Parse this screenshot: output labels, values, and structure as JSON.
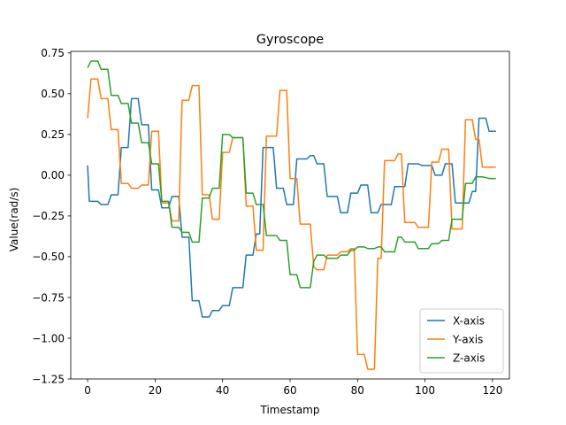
{
  "chart_data": {
    "type": "line",
    "title": "Gyroscope",
    "xlabel": "Timestamp",
    "ylabel": "Value(rad/s)",
    "xlim": [
      -5,
      125
    ],
    "ylim": [
      -1.25,
      0.76
    ],
    "x_ticks": [
      0,
      20,
      40,
      60,
      80,
      100,
      120
    ],
    "x_tick_labels": [
      "0",
      "20",
      "40",
      "60",
      "80",
      "100",
      "120"
    ],
    "y_ticks": [
      -1.25,
      -1.0,
      -0.75,
      -0.5,
      -0.25,
      0.0,
      0.25,
      0.5,
      0.75
    ],
    "y_tick_labels": [
      "−1.25",
      "−1.00",
      "−0.75",
      "−0.50",
      "−0.25",
      "0.00",
      "0.25",
      "0.50",
      "0.75"
    ],
    "grid": false,
    "legend": {
      "position": "bottom-right",
      "entries": [
        "X-axis",
        "Y-axis",
        "Z-axis"
      ]
    },
    "series": [
      {
        "name": "X-axis",
        "color": "#1f77b4",
        "points": [
          [
            0,
            0.06
          ],
          [
            0.5,
            -0.16
          ],
          [
            2,
            -0.16
          ],
          [
            3,
            -0.16
          ],
          [
            4,
            -0.18
          ],
          [
            6,
            -0.18
          ],
          [
            7,
            -0.12
          ],
          [
            9,
            -0.12
          ],
          [
            10,
            0.17
          ],
          [
            12,
            0.17
          ],
          [
            13,
            0.47
          ],
          [
            15,
            0.47
          ],
          [
            16,
            0.31
          ],
          [
            18,
            0.31
          ],
          [
            19,
            -0.09
          ],
          [
            21,
            -0.09
          ],
          [
            22,
            -0.2
          ],
          [
            24,
            -0.2
          ],
          [
            25,
            -0.13
          ],
          [
            27,
            -0.13
          ],
          [
            28,
            -0.38
          ],
          [
            30,
            -0.38
          ],
          [
            31,
            -0.77
          ],
          [
            33,
            -0.77
          ],
          [
            34,
            -0.87
          ],
          [
            36,
            -0.87
          ],
          [
            37,
            -0.83
          ],
          [
            39,
            -0.83
          ],
          [
            40,
            -0.8
          ],
          [
            42,
            -0.8
          ],
          [
            43,
            -0.69
          ],
          [
            46,
            -0.69
          ],
          [
            47,
            -0.49
          ],
          [
            49,
            -0.49
          ],
          [
            50,
            -0.36
          ],
          [
            51,
            -0.36
          ],
          [
            52,
            0.17
          ],
          [
            55,
            0.17
          ],
          [
            56,
            -0.08
          ],
          [
            58,
            -0.08
          ],
          [
            59,
            -0.18
          ],
          [
            61,
            -0.18
          ],
          [
            62,
            0.1
          ],
          [
            65,
            0.1
          ],
          [
            66,
            0.12
          ],
          [
            67,
            0.12
          ],
          [
            68,
            0.07
          ],
          [
            70,
            0.07
          ],
          [
            71,
            -0.13
          ],
          [
            74,
            -0.13
          ],
          [
            75,
            -0.23
          ],
          [
            77,
            -0.23
          ],
          [
            78,
            -0.11
          ],
          [
            80,
            -0.11
          ],
          [
            81,
            -0.06
          ],
          [
            83,
            -0.06
          ],
          [
            84,
            -0.23
          ],
          [
            86,
            -0.23
          ],
          [
            87,
            -0.18
          ],
          [
            90,
            -0.18
          ],
          [
            91,
            -0.07
          ],
          [
            94,
            -0.07
          ],
          [
            95,
            0.07
          ],
          [
            98,
            0.07
          ],
          [
            99,
            0.06
          ],
          [
            102,
            0.06
          ],
          [
            103,
            0.0
          ],
          [
            105,
            0.0
          ],
          [
            106,
            0.07
          ],
          [
            108,
            0.07
          ],
          [
            109,
            -0.17
          ],
          [
            113,
            -0.17
          ],
          [
            114,
            -0.1
          ],
          [
            115,
            -0.1
          ],
          [
            116,
            0.35
          ],
          [
            118,
            0.35
          ],
          [
            119,
            0.27
          ],
          [
            121,
            0.27
          ]
        ]
      },
      {
        "name": "Y-axis",
        "color": "#ff7f0e",
        "points": [
          [
            0,
            0.35
          ],
          [
            1,
            0.59
          ],
          [
            3,
            0.59
          ],
          [
            4,
            0.47
          ],
          [
            6,
            0.47
          ],
          [
            7,
            0.28
          ],
          [
            9,
            0.28
          ],
          [
            10,
            -0.05
          ],
          [
            12,
            -0.05
          ],
          [
            13,
            -0.08
          ],
          [
            15,
            -0.08
          ],
          [
            16,
            -0.06
          ],
          [
            18,
            -0.06
          ],
          [
            19,
            0.27
          ],
          [
            21,
            0.27
          ],
          [
            22,
            -0.17
          ],
          [
            24,
            -0.17
          ],
          [
            25,
            -0.28
          ],
          [
            27,
            -0.28
          ],
          [
            28,
            0.46
          ],
          [
            30,
            0.46
          ],
          [
            31,
            0.55
          ],
          [
            33,
            0.55
          ],
          [
            34,
            -0.12
          ],
          [
            36,
            -0.12
          ],
          [
            37,
            -0.27
          ],
          [
            39,
            -0.27
          ],
          [
            40,
            0.14
          ],
          [
            42,
            0.14
          ],
          [
            43,
            0.23
          ],
          [
            46,
            0.23
          ],
          [
            47,
            -0.19
          ],
          [
            49,
            -0.19
          ],
          [
            50,
            -0.46
          ],
          [
            52,
            -0.46
          ],
          [
            53,
            0.24
          ],
          [
            56,
            0.24
          ],
          [
            57,
            0.52
          ],
          [
            59,
            0.52
          ],
          [
            60,
            -0.02
          ],
          [
            62,
            -0.02
          ],
          [
            63,
            -0.3
          ],
          [
            66,
            -0.3
          ],
          [
            67,
            -0.56
          ],
          [
            68,
            -0.58
          ],
          [
            70,
            -0.58
          ],
          [
            71,
            -0.49
          ],
          [
            74,
            -0.49
          ],
          [
            75,
            -0.47
          ],
          [
            77,
            -0.47
          ],
          [
            78,
            -0.45
          ],
          [
            79,
            -0.45
          ],
          [
            80,
            -1.1
          ],
          [
            82,
            -1.1
          ],
          [
            83,
            -1.19
          ],
          [
            85,
            -1.19
          ],
          [
            86,
            -0.51
          ],
          [
            87,
            -0.51
          ],
          [
            88,
            0.09
          ],
          [
            91,
            0.09
          ],
          [
            92,
            0.13
          ],
          [
            93,
            0.13
          ],
          [
            94,
            -0.29
          ],
          [
            97,
            -0.29
          ],
          [
            98,
            -0.32
          ],
          [
            101,
            -0.32
          ],
          [
            102,
            0.08
          ],
          [
            104,
            0.08
          ],
          [
            105,
            0.16
          ],
          [
            107,
            0.16
          ],
          [
            108,
            -0.33
          ],
          [
            111,
            -0.33
          ],
          [
            112,
            0.34
          ],
          [
            114,
            0.34
          ],
          [
            115,
            0.22
          ],
          [
            116,
            0.22
          ],
          [
            117,
            0.05
          ],
          [
            119,
            0.05
          ],
          [
            120,
            0.05
          ],
          [
            121,
            0.05
          ]
        ]
      },
      {
        "name": "Z-axis",
        "color": "#2ca02c",
        "points": [
          [
            0,
            0.66
          ],
          [
            1,
            0.7
          ],
          [
            3,
            0.7
          ],
          [
            4,
            0.65
          ],
          [
            6,
            0.65
          ],
          [
            7,
            0.49
          ],
          [
            9,
            0.49
          ],
          [
            10,
            0.44
          ],
          [
            12,
            0.44
          ],
          [
            13,
            0.32
          ],
          [
            15,
            0.32
          ],
          [
            16,
            0.2
          ],
          [
            18,
            0.2
          ],
          [
            19,
            0.07
          ],
          [
            21,
            0.07
          ],
          [
            22,
            -0.16
          ],
          [
            24,
            -0.16
          ],
          [
            25,
            -0.32
          ],
          [
            27,
            -0.32
          ],
          [
            28,
            -0.35
          ],
          [
            30,
            -0.35
          ],
          [
            31,
            -0.41
          ],
          [
            33,
            -0.41
          ],
          [
            34,
            -0.14
          ],
          [
            36,
            -0.14
          ],
          [
            37,
            -0.08
          ],
          [
            39,
            -0.08
          ],
          [
            40,
            0.25
          ],
          [
            42,
            0.25
          ],
          [
            43,
            0.23
          ],
          [
            46,
            0.23
          ],
          [
            47,
            -0.11
          ],
          [
            49,
            -0.11
          ],
          [
            50,
            -0.18
          ],
          [
            52,
            -0.18
          ],
          [
            53,
            -0.37
          ],
          [
            56,
            -0.37
          ],
          [
            57,
            -0.4
          ],
          [
            59,
            -0.4
          ],
          [
            60,
            -0.61
          ],
          [
            62,
            -0.61
          ],
          [
            63,
            -0.69
          ],
          [
            66,
            -0.69
          ],
          [
            67,
            -0.53
          ],
          [
            68,
            -0.49
          ],
          [
            70,
            -0.49
          ],
          [
            71,
            -0.51
          ],
          [
            74,
            -0.51
          ],
          [
            75,
            -0.49
          ],
          [
            77,
            -0.49
          ],
          [
            78,
            -0.46
          ],
          [
            79,
            -0.46
          ],
          [
            80,
            -0.44
          ],
          [
            82,
            -0.44
          ],
          [
            83,
            -0.45
          ],
          [
            85,
            -0.45
          ],
          [
            86,
            -0.44
          ],
          [
            87,
            -0.44
          ],
          [
            88,
            -0.47
          ],
          [
            91,
            -0.47
          ],
          [
            92,
            -0.38
          ],
          [
            93,
            -0.38
          ],
          [
            94,
            -0.41
          ],
          [
            97,
            -0.41
          ],
          [
            98,
            -0.45
          ],
          [
            101,
            -0.45
          ],
          [
            102,
            -0.42
          ],
          [
            104,
            -0.42
          ],
          [
            105,
            -0.4
          ],
          [
            107,
            -0.4
          ],
          [
            108,
            -0.27
          ],
          [
            111,
            -0.27
          ],
          [
            112,
            -0.05
          ],
          [
            114,
            -0.05
          ],
          [
            115,
            -0.01
          ],
          [
            116,
            -0.01
          ],
          [
            117,
            -0.01
          ],
          [
            119,
            -0.02
          ],
          [
            120,
            -0.02
          ],
          [
            121,
            -0.02
          ]
        ]
      }
    ]
  }
}
